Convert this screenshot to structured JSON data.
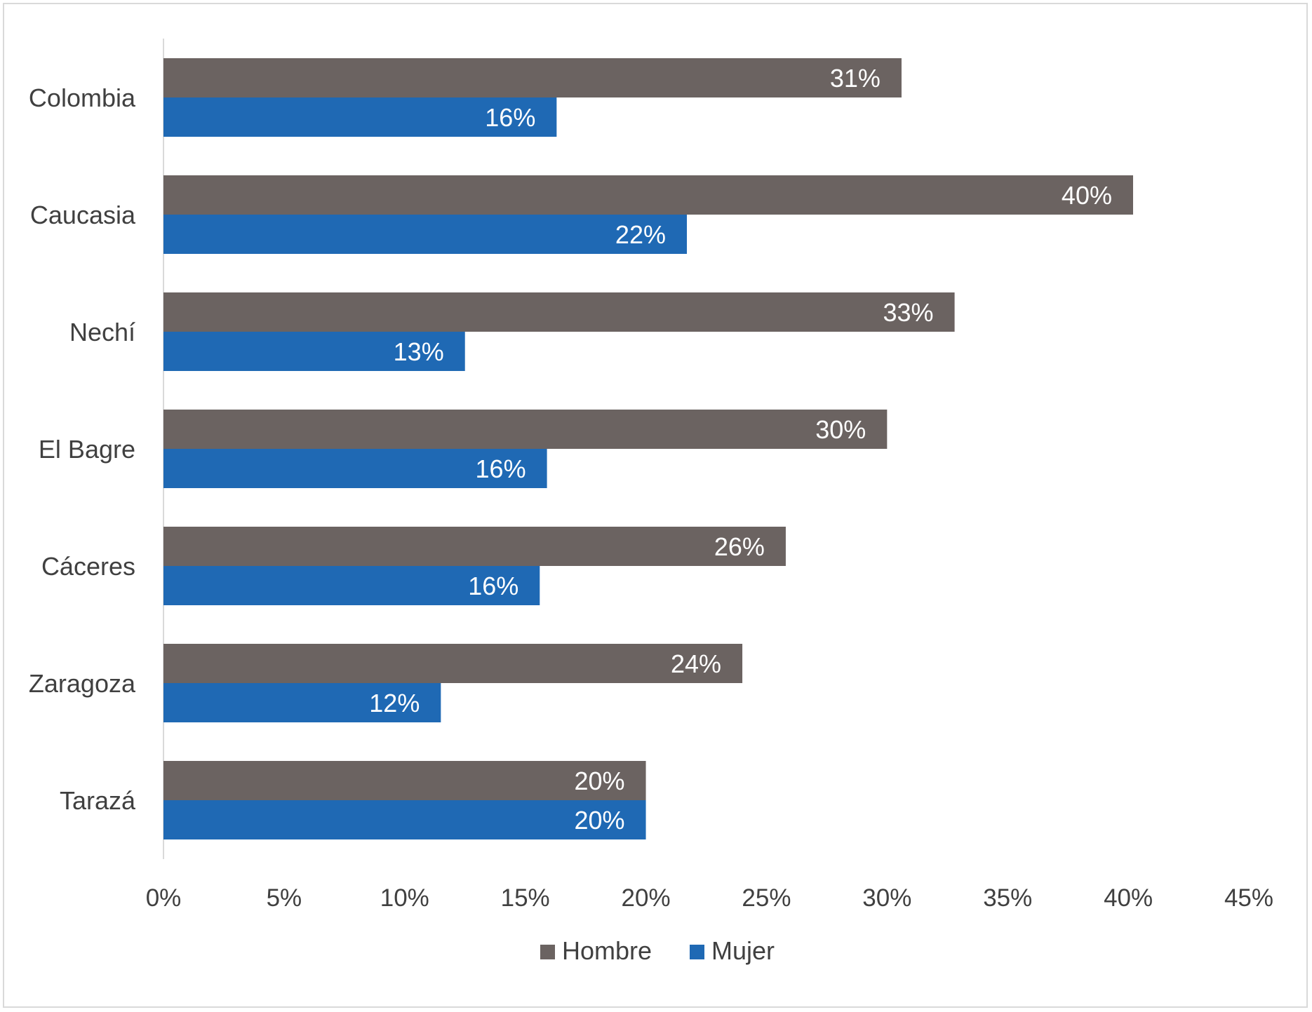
{
  "chart_data": {
    "type": "bar",
    "orientation": "horizontal",
    "categories": [
      "Colombia",
      "Caucasia",
      "Nechí",
      "El Bagre",
      "Cáceres",
      "Zaragoza",
      "Tarazá"
    ],
    "series": [
      {
        "name": "Hombre",
        "color": "#6b6361",
        "values": [
          30.6,
          40.2,
          32.8,
          30.0,
          25.8,
          24.0,
          20.0
        ],
        "labels": [
          "31%",
          "40%",
          "33%",
          "30%",
          "26%",
          "24%",
          "20%"
        ]
      },
      {
        "name": "Mujer",
        "color": "#1f69b4",
        "values": [
          16.3,
          21.7,
          12.5,
          15.9,
          15.6,
          11.5,
          20.0
        ],
        "labels": [
          "16%",
          "22%",
          "13%",
          "16%",
          "16%",
          "12%",
          "20%"
        ]
      }
    ],
    "xlim": [
      0,
      45
    ],
    "x_ticks": [
      "0%",
      "5%",
      "10%",
      "15%",
      "20%",
      "25%",
      "30%",
      "35%",
      "40%",
      "45%"
    ],
    "grid": false,
    "legend_position": "bottom"
  }
}
